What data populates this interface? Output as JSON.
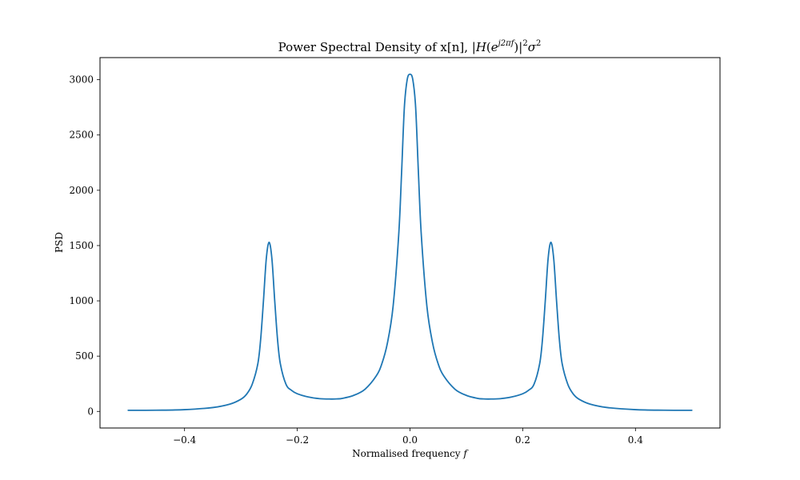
{
  "chart_data": {
    "type": "line",
    "title": "Power Spectral Density of x[n], |H(e^{j2πf})|²σ²",
    "title_parts": {
      "prefix": "Power Spectral Density of x[n], |",
      "H": "H",
      "e": "e",
      "exponent": "j2πf",
      "mid": ")|",
      "sq1": "2",
      "sigma": "σ",
      "sq2": "2"
    },
    "xlabel": "Normalised frequency",
    "xlabel_var": "f",
    "ylabel": "PSD",
    "xlim": [
      -0.55,
      0.55
    ],
    "ylim": [
      -150,
      3200
    ],
    "xticks": [
      -0.4,
      -0.2,
      0.0,
      0.2,
      0.4
    ],
    "xtick_labels": [
      "−0.4",
      "−0.2",
      "0.0",
      "0.2",
      "0.4"
    ],
    "yticks": [
      0,
      500,
      1000,
      1500,
      2000,
      2500,
      3000
    ],
    "ytick_labels": [
      "0",
      "500",
      "1000",
      "1500",
      "2000",
      "2500",
      "3000"
    ],
    "grid": false,
    "legend": "none",
    "line_color": "#1f77b4",
    "series": [
      {
        "x": [
          -0.5,
          -0.45,
          -0.4,
          -0.35,
          -0.32,
          -0.3,
          -0.29,
          -0.28,
          -0.27,
          -0.265,
          -0.26,
          -0.255,
          -0.25,
          -0.245,
          -0.24,
          -0.235,
          -0.23,
          -0.22,
          -0.21,
          -0.2,
          -0.18,
          -0.16,
          -0.14,
          -0.13,
          -0.12,
          -0.1,
          -0.08,
          -0.06,
          -0.05,
          -0.04,
          -0.03,
          -0.02,
          -0.015,
          -0.01,
          -0.005,
          0.0,
          0.005,
          0.01,
          0.015,
          0.02,
          0.03,
          0.04,
          0.05,
          0.06,
          0.08,
          0.1,
          0.12,
          0.13,
          0.14,
          0.16,
          0.18,
          0.2,
          0.21,
          0.22,
          0.23,
          0.235,
          0.24,
          0.245,
          0.25,
          0.255,
          0.26,
          0.265,
          0.27,
          0.28,
          0.29,
          0.3,
          0.32,
          0.35,
          0.4,
          0.45,
          0.5
        ],
        "y": [
          10,
          11,
          16,
          35,
          65,
          110,
          155,
          245,
          430,
          650,
          1000,
          1380,
          1530,
          1380,
          1000,
          650,
          430,
          245,
          190,
          160,
          130,
          115,
          112,
          113,
          118,
          145,
          200,
          320,
          430,
          620,
          950,
          1600,
          2150,
          2750,
          3000,
          3050,
          3000,
          2750,
          2150,
          1600,
          950,
          620,
          430,
          320,
          200,
          145,
          118,
          113,
          112,
          115,
          130,
          160,
          190,
          245,
          430,
          650,
          1000,
          1380,
          1530,
          1380,
          1000,
          650,
          430,
          245,
          155,
          110,
          65,
          35,
          16,
          11,
          10
        ]
      }
    ]
  }
}
